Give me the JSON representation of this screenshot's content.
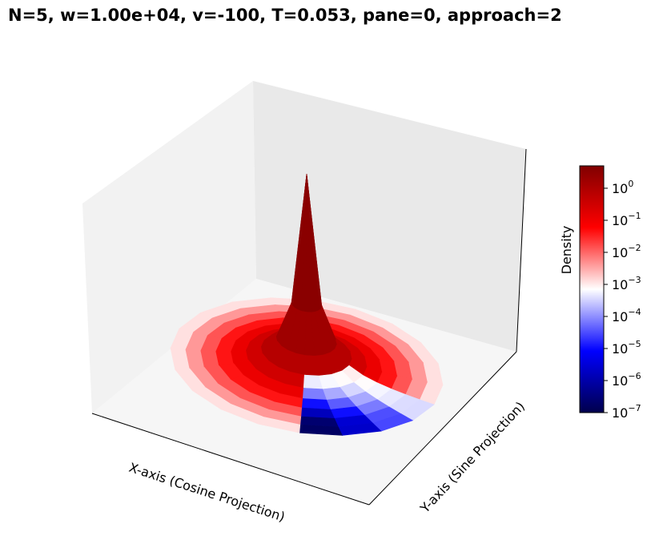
{
  "chart_data": {
    "type": "surface3d",
    "title": "N=5, w=1.00e+04, v=-100, T=0.053, pane=0, approach=2",
    "xlabel": "X-axis (Cosine Projection)",
    "ylabel": "Y-axis (Sine Projection)",
    "zlabel": "",
    "grid": false,
    "colorbar": {
      "label": "Density",
      "scale": "log",
      "range": [
        1e-07,
        5
      ],
      "colormap": "seismic",
      "ticks": [
        {
          "value": 1e-07,
          "base": "10",
          "exp": "−7"
        },
        {
          "value": 1e-06,
          "base": "10",
          "exp": "−6"
        },
        {
          "value": 1e-05,
          "base": "10",
          "exp": "−5"
        },
        {
          "value": 0.0001,
          "base": "10",
          "exp": "−4"
        },
        {
          "value": 0.001,
          "base": "10",
          "exp": "−3"
        },
        {
          "value": 0.01,
          "base": "10",
          "exp": "−2"
        },
        {
          "value": 0.1,
          "base": "10",
          "exp": "−1"
        },
        {
          "value": 1,
          "base": "10",
          "exp": "0"
        }
      ]
    },
    "surface": {
      "geometry": "polar disk",
      "radial_rings": 9,
      "angular_segments": 20,
      "peak_density": 5,
      "low_density_wedge": {
        "angle_span_deg": [
          -85,
          -20
        ],
        "min_density": 1e-07
      }
    }
  }
}
